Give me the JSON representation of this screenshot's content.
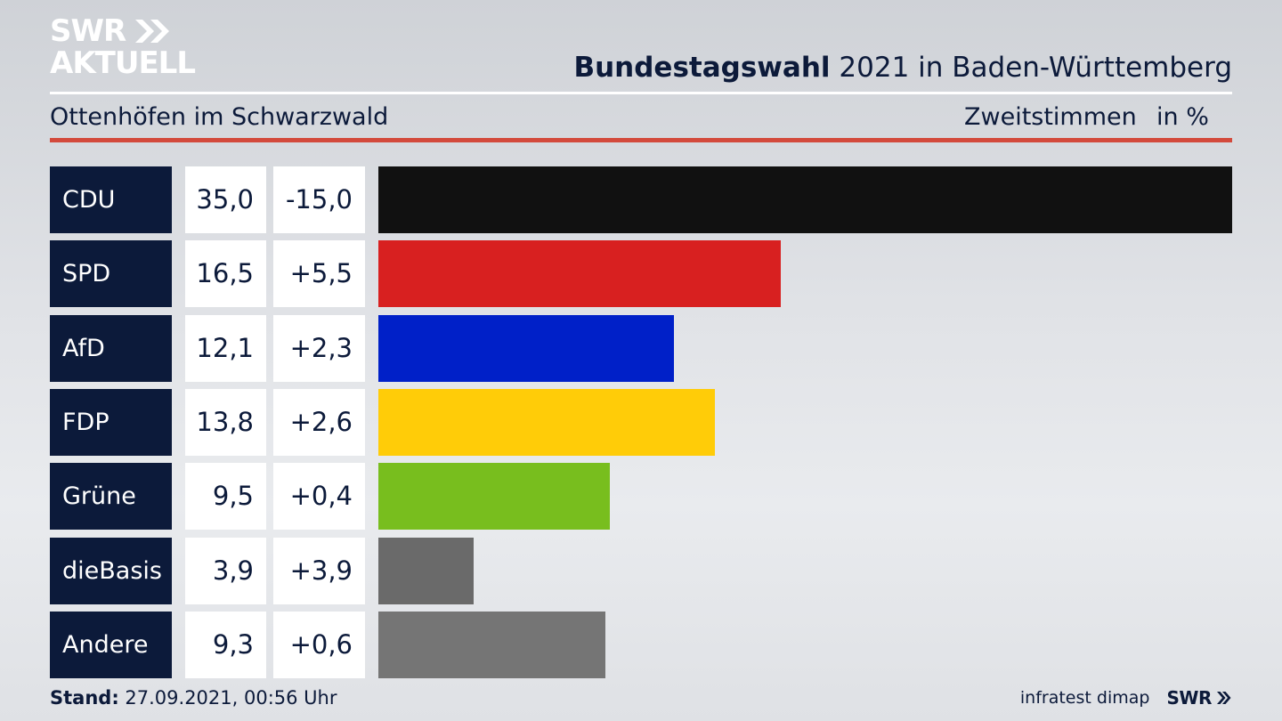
{
  "logo": {
    "line1": "SWR",
    "line2": "AKTUELL"
  },
  "header": {
    "title_bold": "Bundestagswahl",
    "title_rest": " 2021 in Baden-Württemberg",
    "subtitle": "Ottenhöfen im Schwarzwald",
    "measure": "Zweitstimmen",
    "unit": "in %"
  },
  "chart_data": {
    "type": "bar",
    "orientation": "horizontal",
    "categories": [
      "CDU",
      "SPD",
      "AfD",
      "FDP",
      "Grüne",
      "dieBasis",
      "Andere"
    ],
    "values": [
      35.0,
      16.5,
      12.1,
      13.8,
      9.5,
      3.9,
      9.3
    ],
    "value_labels": [
      "35,0",
      "16,5",
      "12,1",
      "13,8",
      "9,5",
      "3,9",
      "9,3"
    ],
    "changes": [
      -15.0,
      5.5,
      2.3,
      2.6,
      0.4,
      3.9,
      0.6
    ],
    "change_labels": [
      "-15,0",
      "+5,5",
      "+2,3",
      "+2,6",
      "+0,4",
      "+3,9",
      "+0,6"
    ],
    "colors": [
      "#111111",
      "#d82020",
      "#0020c8",
      "#ffcc08",
      "#78be1e",
      "#6a6a6a",
      "#757575"
    ],
    "xlim": [
      0,
      35
    ],
    "grid": false,
    "legend": "none"
  },
  "footer": {
    "stand_label": "Stand:",
    "stand_value": " 27.09.2021, 00:56 Uhr",
    "source": "infratest dimap",
    "brand": "SWR"
  }
}
